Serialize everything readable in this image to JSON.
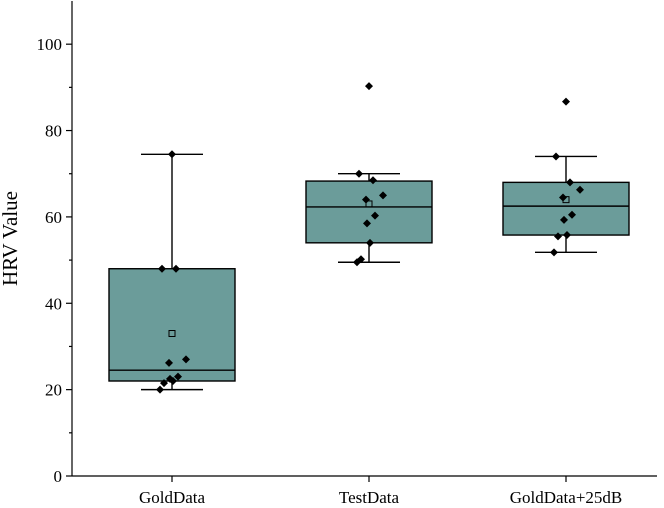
{
  "chart_data": {
    "type": "box",
    "title": "",
    "xlabel": "",
    "ylabel": "HRV Value",
    "ylim": [
      0,
      110
    ],
    "yticks": [
      0,
      20,
      40,
      60,
      80,
      100
    ],
    "grid": false,
    "colors": {
      "box_fill": "#6b9c9a",
      "outline": "#000000"
    },
    "categories": [
      "GoldData",
      "TestData",
      "GoldData+25dB"
    ],
    "boxes": [
      {
        "name": "GoldData",
        "q1": 22,
        "median": 24.5,
        "q3": 48,
        "whisker_low": 20,
        "whisker_high": 74.5,
        "mean": 33,
        "points": [
          74.5,
          48,
          48,
          27,
          26.2,
          23,
          22.5,
          22,
          21.5,
          20
        ]
      },
      {
        "name": "TestData",
        "q1": 54,
        "median": 62.3,
        "q3": 68.3,
        "whisker_low": 49.5,
        "whisker_high": 70,
        "mean": 63,
        "points": [
          90.3,
          70,
          68.5,
          65,
          64,
          60.3,
          58.5,
          54,
          50.2,
          49.5
        ]
      },
      {
        "name": "GoldData+25dB",
        "q1": 55.8,
        "median": 62.5,
        "q3": 68,
        "whisker_low": 51.8,
        "whisker_high": 74,
        "mean": 64,
        "points": [
          86.7,
          74,
          68,
          66.3,
          64.5,
          60.5,
          59.3,
          55.8,
          55.5,
          51.8
        ]
      }
    ]
  }
}
